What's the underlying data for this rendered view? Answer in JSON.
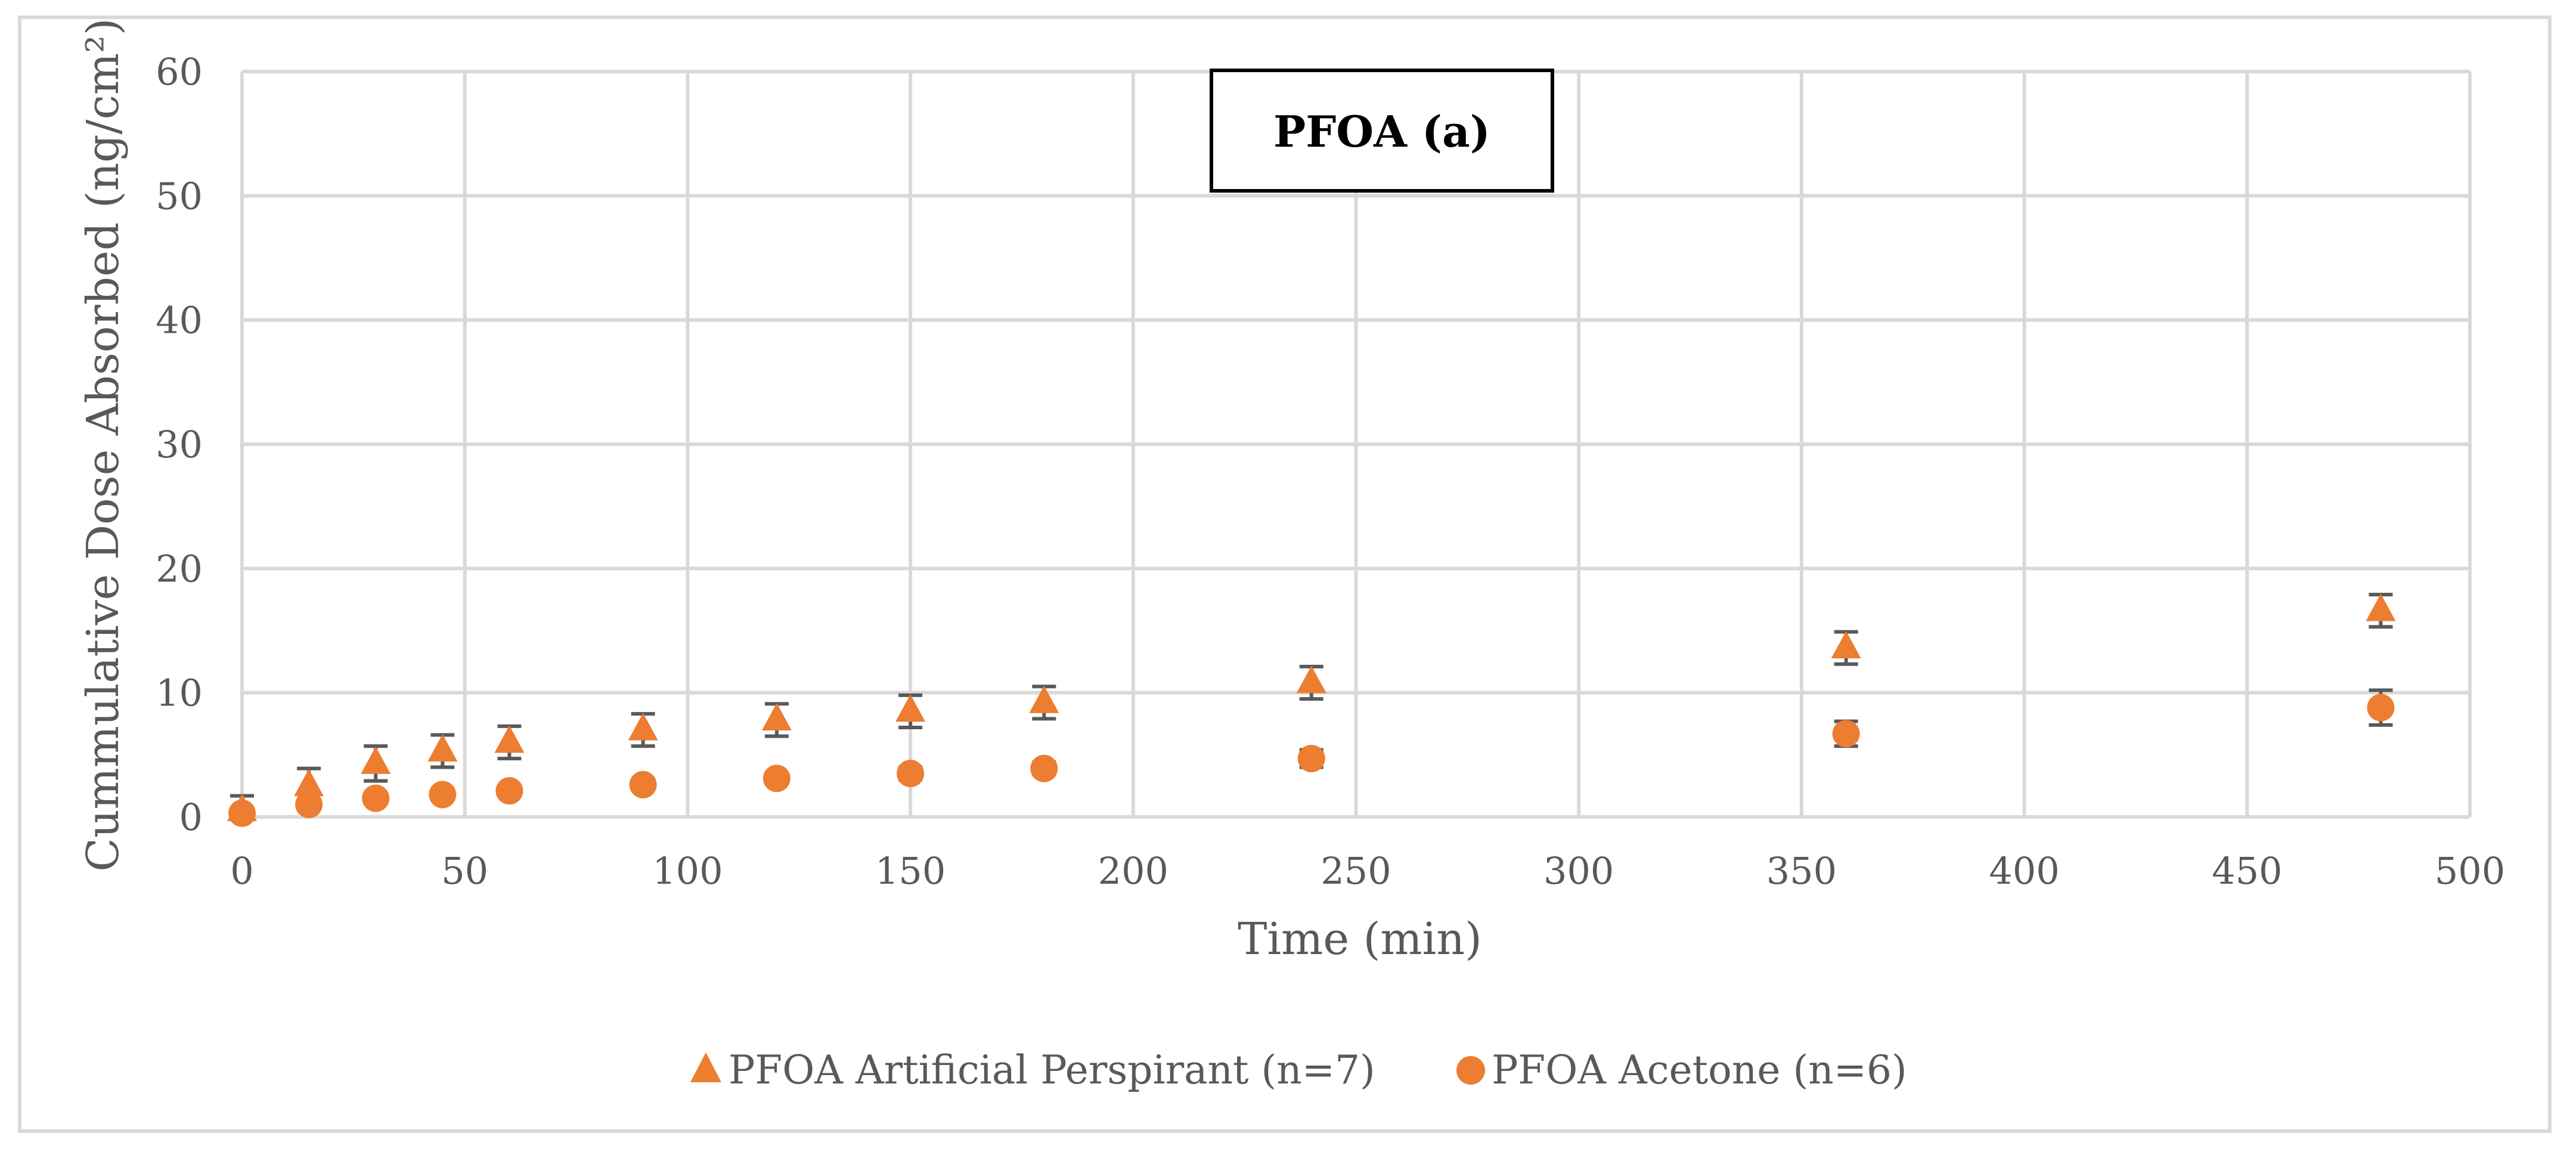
{
  "chart_data": {
    "type": "scatter",
    "title": "PFOA (a)",
    "xlabel": "Time (min)",
    "ylabel": "Cummulative Dose Absorbed (ng/cm²)",
    "xlim": [
      0,
      500
    ],
    "ylim": [
      0,
      60
    ],
    "x_ticks": [
      "0",
      "50",
      "100",
      "150",
      "200",
      "250",
      "300",
      "350",
      "400",
      "450",
      "500"
    ],
    "y_ticks": [
      "0",
      "10",
      "20",
      "30",
      "40",
      "50",
      "60"
    ],
    "grid": true,
    "legend_position": "bottom",
    "series": [
      {
        "name": "PFOA Artificial Perspirant (n=7)",
        "marker": "triangle",
        "color": "#ed7d31",
        "x": [
          0,
          15,
          30,
          45,
          60,
          90,
          120,
          150,
          180,
          240,
          360,
          480
        ],
        "y": [
          0.5,
          2.5,
          4.3,
          5.3,
          6.0,
          7.0,
          7.8,
          8.5,
          9.2,
          10.8,
          13.6,
          16.6
        ],
        "error": [
          1.2,
          1.4,
          1.4,
          1.3,
          1.3,
          1.3,
          1.3,
          1.3,
          1.3,
          1.3,
          1.3,
          1.3
        ]
      },
      {
        "name": "PFOA Acetone (n=6)",
        "marker": "circle",
        "color": "#ed7d31",
        "x": [
          0,
          15,
          30,
          45,
          60,
          90,
          120,
          150,
          180,
          240,
          360,
          480
        ],
        "y": [
          0.3,
          1.0,
          1.5,
          1.8,
          2.1,
          2.6,
          3.1,
          3.5,
          3.9,
          4.7,
          6.7,
          8.8
        ],
        "error": [
          0.3,
          0.3,
          0.3,
          0.3,
          0.3,
          0.4,
          0.4,
          0.5,
          0.5,
          0.7,
          1.0,
          1.4
        ]
      }
    ]
  }
}
